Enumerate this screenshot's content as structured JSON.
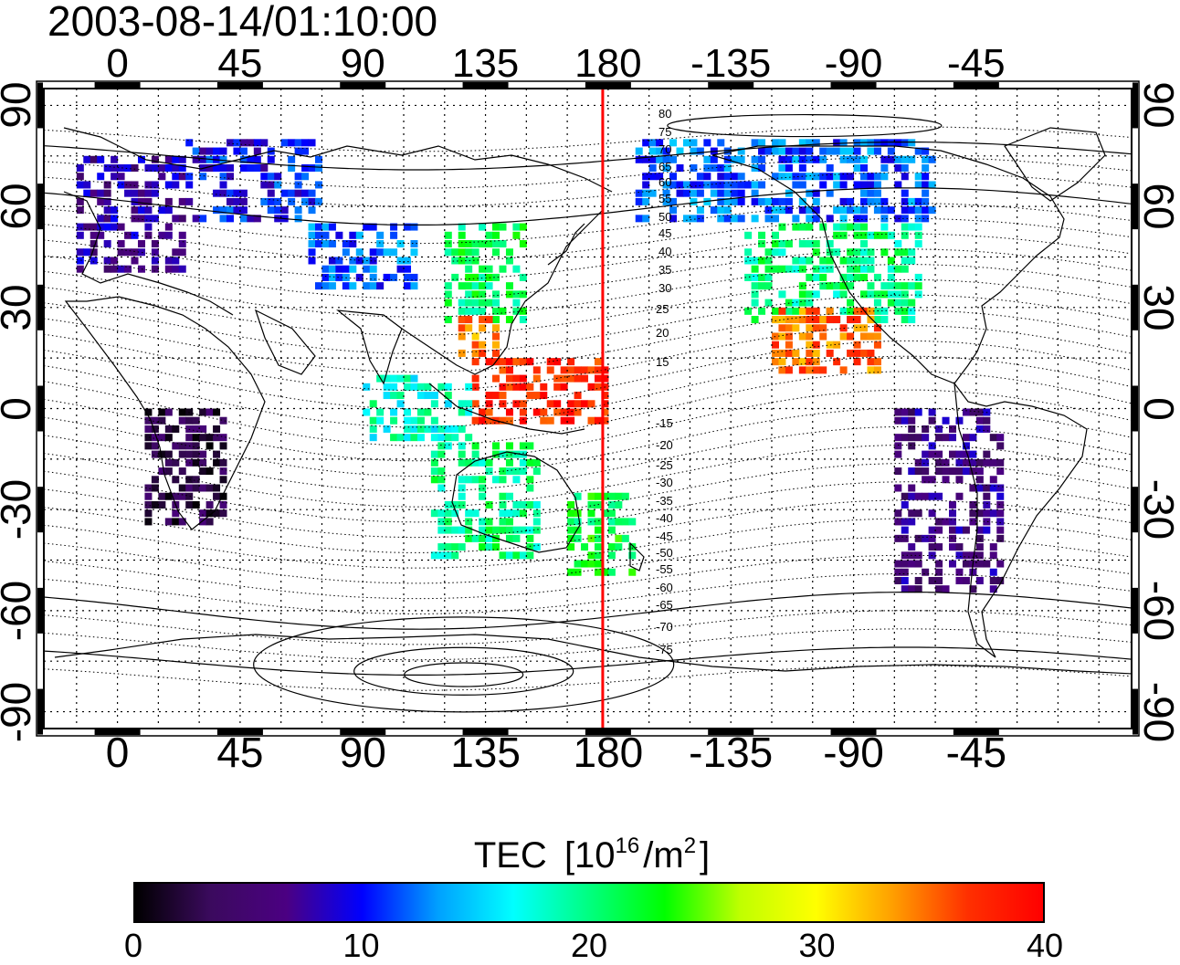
{
  "title": "2003-08-14/01:10:00",
  "map": {
    "lon_ticks": [
      "0",
      "45",
      "90",
      "135",
      "180",
      "-135",
      "-90",
      "-45"
    ],
    "lon_tick_values": [
      0,
      45,
      90,
      135,
      180,
      225,
      270,
      315
    ],
    "lat_ticks": [
      "90",
      "60",
      "30",
      "0",
      "-30",
      "-60",
      "-90"
    ],
    "lat_tick_values": [
      90,
      60,
      30,
      0,
      -30,
      -60,
      -90
    ],
    "lon_range": [
      -27,
      372
    ],
    "lat_range": [
      -95,
      95
    ],
    "marker_line_lon": 180,
    "marker_line_color": "#ff0000",
    "contour_labels": {
      "north": [
        "80",
        "75",
        "70",
        "65",
        "60",
        "55",
        "50",
        "45",
        "40",
        "35",
        "30",
        "25",
        "20",
        "15"
      ],
      "south": [
        "-15",
        "-20",
        "-25",
        "-30",
        "-35",
        "-40",
        "-45",
        "-50",
        "-55",
        "-60",
        "-65",
        "-70",
        "-75"
      ]
    },
    "background": "#ffffff"
  },
  "colorbar": {
    "title": "TEC",
    "unit_open": "[10",
    "unit_exp": "16",
    "unit_mid": "/m",
    "unit_exp2": "2",
    "unit_close": "]",
    "ticks": [
      "0",
      "10",
      "20",
      "30",
      "40"
    ],
    "tick_values": [
      0,
      10,
      20,
      30,
      40
    ],
    "range": [
      0,
      40
    ],
    "colors": [
      "#000000",
      "#3b0a5e",
      "#4b0082",
      "#0000ff",
      "#00a0ff",
      "#00ffff",
      "#00ff80",
      "#00ff00",
      "#c0ff00",
      "#ffff00",
      "#ffa000",
      "#ff3000",
      "#ff0000"
    ]
  },
  "chart_data": {
    "type": "heatmap",
    "title": "2003-08-14/01:10:00",
    "xlabel": "",
    "ylabel": "",
    "colorbar_label": "TEC [10^16/m^2]",
    "zlim": [
      0,
      40
    ],
    "regions": [
      {
        "lon": [
          -15,
          25
        ],
        "lat": [
          40,
          75
        ],
        "value": 7
      },
      {
        "lon": [
          25,
          75
        ],
        "lat": [
          55,
          80
        ],
        "value": 10
      },
      {
        "lon": [
          70,
          110
        ],
        "lat": [
          35,
          55
        ],
        "value": 12
      },
      {
        "lon": [
          120,
          150
        ],
        "lat": [
          25,
          55
        ],
        "value": 21
      },
      {
        "lon": [
          125,
          140
        ],
        "lat": [
          15,
          30
        ],
        "value": 34
      },
      {
        "lon": [
          130,
          180
        ],
        "lat": [
          -5,
          15
        ],
        "value": 38
      },
      {
        "lon": [
          165,
          190
        ],
        "lat": [
          -50,
          -25
        ],
        "value": 22
      },
      {
        "lon": [
          -130,
          -65
        ],
        "lat": [
          25,
          55
        ],
        "value": 20
      },
      {
        "lon": [
          -120,
          -80
        ],
        "lat": [
          10,
          30
        ],
        "value": 35
      },
      {
        "lon": [
          -170,
          -60
        ],
        "lat": [
          55,
          80
        ],
        "value": 12
      },
      {
        "lon": [
          -75,
          -35
        ],
        "lat": [
          -55,
          0
        ],
        "value": 6
      },
      {
        "lon": [
          10,
          40
        ],
        "lat": [
          -35,
          0
        ],
        "value": 3
      },
      {
        "lon": [
          115,
          155
        ],
        "lat": [
          -45,
          -10
        ],
        "value": 20
      },
      {
        "lon": [
          90,
          130
        ],
        "lat": [
          -10,
          10
        ],
        "value": 18
      }
    ]
  }
}
